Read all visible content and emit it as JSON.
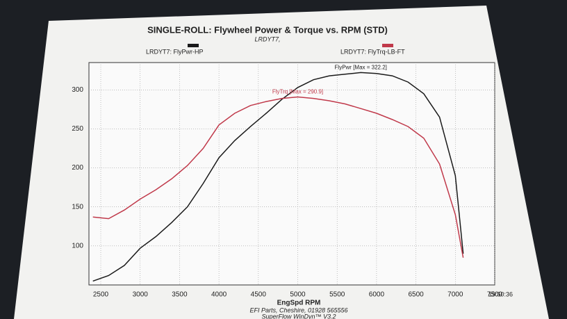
{
  "chart_data": {
    "type": "line",
    "title": "SINGLE-ROLL: Flywheel Power & Torque vs. RPM (STD)",
    "subtitle": "LRDYT7,",
    "x_label": "EngSpd RPM",
    "x": [
      2400,
      2600,
      2800,
      3000,
      3200,
      3400,
      3600,
      3800,
      4000,
      4200,
      4400,
      4600,
      4800,
      5000,
      5200,
      5400,
      5600,
      5800,
      6000,
      6200,
      6400,
      6600,
      6800,
      7000,
      7100
    ],
    "series": [
      {
        "name": "LRDYT7: FlyPwr-HP",
        "color": "#1a1a1a",
        "values": [
          55,
          62,
          75,
          97,
          112,
          130,
          150,
          180,
          213,
          235,
          253,
          270,
          288,
          303,
          313,
          318,
          320,
          322.2,
          321,
          318,
          310,
          295,
          265,
          190,
          90
        ]
      },
      {
        "name": "LRDYT7: FlyTrq-LB-FT",
        "color": "#c0394a",
        "values": [
          137,
          135,
          146,
          160,
          172,
          186,
          203,
          225,
          255,
          270,
          280,
          285,
          289,
          290.9,
          289,
          286,
          282,
          276,
          270,
          262,
          253,
          238,
          205,
          140,
          85
        ]
      }
    ],
    "annotations": [
      "FlyPwr [Max = 322.2]",
      "FlyTrq [Max = 290.9]"
    ],
    "xlim": [
      2350,
      7500
    ],
    "xticks": [
      2500,
      3000,
      3500,
      4000,
      4500,
      5000,
      5500,
      6000,
      6500,
      7000,
      7500
    ],
    "ylim": [
      50,
      335
    ],
    "yticks": [
      100,
      150,
      200,
      250,
      300
    ],
    "grid": true,
    "footer": [
      "EFI Parts, Cheshire, 01928 565556",
      "SuperFlow WinDyn™ V3.2"
    ],
    "timestamp": "19:50:36"
  }
}
